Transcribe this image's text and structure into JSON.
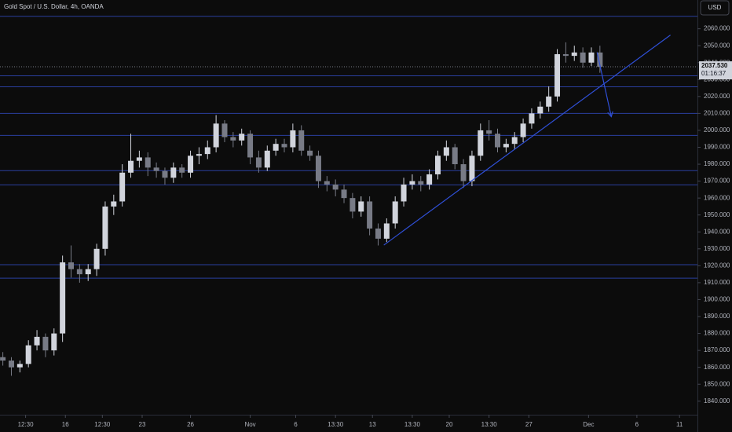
{
  "chart_data": {
    "type": "candlestick",
    "title": "Gold Spot / U.S. Dollar, 4h, OANDA",
    "currency_button": "USD",
    "countdown": "01:16:37",
    "last_price": {
      "value": 2037.53,
      "label": "2037.530"
    },
    "x": [
      0,
      3,
      6,
      9,
      12,
      15,
      18,
      21,
      24,
      27,
      30,
      33,
      36,
      39,
      42,
      45,
      48,
      51,
      54,
      57,
      60,
      63,
      66,
      69,
      72,
      75,
      78,
      81,
      84,
      87,
      90,
      93,
      96,
      99,
      102,
      105,
      108,
      111,
      114,
      117,
      120,
      123,
      126,
      129,
      132,
      135,
      138,
      141,
      144,
      147,
      150,
      153,
      156,
      159,
      162,
      165,
      168,
      171,
      174,
      177,
      180,
      183,
      186,
      189,
      192,
      195,
      198,
      201,
      204,
      207,
      210
    ],
    "open": [
      1866,
      1864,
      1860,
      1862,
      1873,
      1878,
      1870,
      1880,
      1922,
      1918,
      1915,
      1918,
      1930,
      1955,
      1958,
      1975,
      1982,
      1984,
      1978,
      1976,
      1972,
      1978,
      1975,
      1985,
      1986,
      1990,
      2004,
      1996,
      1994,
      1998,
      1984,
      1978,
      1988,
      1992,
      1990,
      2000,
      1988,
      1985,
      1970,
      1968,
      1965,
      1960,
      1952,
      1958,
      1942,
      1936,
      1945,
      1958,
      1968,
      1970,
      1968,
      1974,
      1985,
      1990,
      1980,
      1970,
      1985,
      2000,
      1998,
      1990,
      1992,
      1996,
      2004,
      2010,
      2014,
      2020,
      2045,
      2044,
      2046,
      2040,
      2046
    ],
    "high": [
      1869,
      1866,
      1864,
      1876,
      1882,
      1880,
      1883,
      1926,
      1932,
      1921,
      1921,
      1933,
      1958,
      1962,
      1980,
      1998,
      1988,
      1987,
      1981,
      1978,
      1981,
      1980,
      1988,
      1990,
      1994,
      2009,
      2006,
      1999,
      2001,
      2000,
      1988,
      1991,
      1995,
      1995,
      2004,
      2003,
      1991,
      1988,
      1973,
      1971,
      1968,
      1963,
      1961,
      1961,
      1945,
      1948,
      1961,
      1972,
      1974,
      1973,
      1977,
      1988,
      1994,
      1992,
      1983,
      1988,
      2004,
      2006,
      2001,
      1995,
      1999,
      2007,
      2013,
      2017,
      2026,
      2048,
      2052,
      2050,
      2049,
      2049,
      2050
    ],
    "low": [
      1861,
      1855,
      1857,
      1860,
      1870,
      1866,
      1867,
      1875,
      1913,
      1910,
      1911,
      1914,
      1926,
      1950,
      1955,
      1972,
      1978,
      1973,
      1972,
      1968,
      1969,
      1972,
      1972,
      1980,
      1983,
      1987,
      1993,
      1990,
      1991,
      1980,
      1975,
      1976,
      1985,
      1987,
      1987,
      1985,
      1982,
      1966,
      1964,
      1961,
      1957,
      1948,
      1949,
      1938,
      1932,
      1934,
      1942,
      1955,
      1965,
      1964,
      1965,
      1971,
      1982,
      1977,
      1966,
      1967,
      1982,
      1994,
      1987,
      1987,
      1989,
      1993,
      2001,
      2007,
      2011,
      2017,
      2040,
      2041,
      2037,
      2038,
      2034
    ],
    "close": [
      1864,
      1860,
      1862,
      1873,
      1878,
      1870,
      1880,
      1922,
      1918,
      1915,
      1918,
      1930,
      1955,
      1958,
      1975,
      1982,
      1984,
      1978,
      1976,
      1972,
      1978,
      1975,
      1985,
      1986,
      1990,
      2004,
      1996,
      1994,
      1998,
      1984,
      1978,
      1988,
      1992,
      1990,
      2000,
      1988,
      1985,
      1970,
      1968,
      1965,
      1960,
      1952,
      1958,
      1942,
      1936,
      1945,
      1958,
      1968,
      1970,
      1968,
      1974,
      1985,
      1990,
      1980,
      1970,
      1985,
      2000,
      1998,
      1990,
      1992,
      1996,
      2004,
      2010,
      2014,
      2020,
      2045,
      2044,
      2046,
      2040,
      2046,
      2037.53
    ],
    "up_color": "#d1d4dc",
    "down_color": "#787b86",
    "levels": [
      2067.4,
      2032.2,
      2025.7,
      2010,
      1997,
      1976.2,
      1967.8,
      1920.6,
      1912.7
    ],
    "level_color": "#2a3f9e",
    "trendline": {
      "x": [
        134,
        234.8
      ],
      "y": [
        1932.2,
        2056.3
      ]
    },
    "arrow": {
      "x": [
        209,
        214
      ],
      "y": [
        2046.1,
        2008.1
      ]
    },
    "drawing_color": "#2f4fd6",
    "xlim": [
      -1,
      244.3
    ],
    "ylim": [
      1832,
      2077
    ],
    "xticks": [
      {
        "value": 8,
        "label": "12:30"
      },
      {
        "value": 22,
        "label": "16"
      },
      {
        "value": 35,
        "label": "12:30"
      },
      {
        "value": 49,
        "label": "23"
      },
      {
        "value": 66,
        "label": "26"
      },
      {
        "value": 87,
        "label": "Nov"
      },
      {
        "value": 103,
        "label": "6"
      },
      {
        "value": 117,
        "label": "13:30"
      },
      {
        "value": 130,
        "label": "13"
      },
      {
        "value": 144,
        "label": "13:30"
      },
      {
        "value": 157,
        "label": "20"
      },
      {
        "value": 171,
        "label": "13:30"
      },
      {
        "value": 185,
        "label": "27"
      },
      {
        "value": 206,
        "label": "Dec"
      },
      {
        "value": 223,
        "label": "6"
      },
      {
        "value": 238,
        "label": "11"
      }
    ],
    "yticks": [
      {
        "value": 1840,
        "label": "1840.000"
      },
      {
        "value": 1850,
        "label": "1850.000"
      },
      {
        "value": 1860,
        "label": "1860.000"
      },
      {
        "value": 1870,
        "label": "1870.000"
      },
      {
        "value": 1880,
        "label": "1880.000"
      },
      {
        "value": 1890,
        "label": "1890.000"
      },
      {
        "value": 1900,
        "label": "1900.000"
      },
      {
        "value": 1910,
        "label": "1910.000"
      },
      {
        "value": 1920,
        "label": "1920.000"
      },
      {
        "value": 1930,
        "label": "1930.000"
      },
      {
        "value": 1940,
        "label": "1940.000"
      },
      {
        "value": 1950,
        "label": "1950.000"
      },
      {
        "value": 1960,
        "label": "1960.000"
      },
      {
        "value": 1970,
        "label": "1970.000"
      },
      {
        "value": 1980,
        "label": "1980.000"
      },
      {
        "value": 1990,
        "label": "1990.000"
      },
      {
        "value": 2000,
        "label": "2000.000"
      },
      {
        "value": 2010,
        "label": "2010.000"
      },
      {
        "value": 2020,
        "label": "2020.000"
      },
      {
        "value": 2030,
        "label": "2030.000"
      },
      {
        "value": 2040,
        "label": "2040.000"
      },
      {
        "value": 2050,
        "label": "2050.000"
      },
      {
        "value": 2060,
        "label": "2060.000"
      }
    ]
  }
}
